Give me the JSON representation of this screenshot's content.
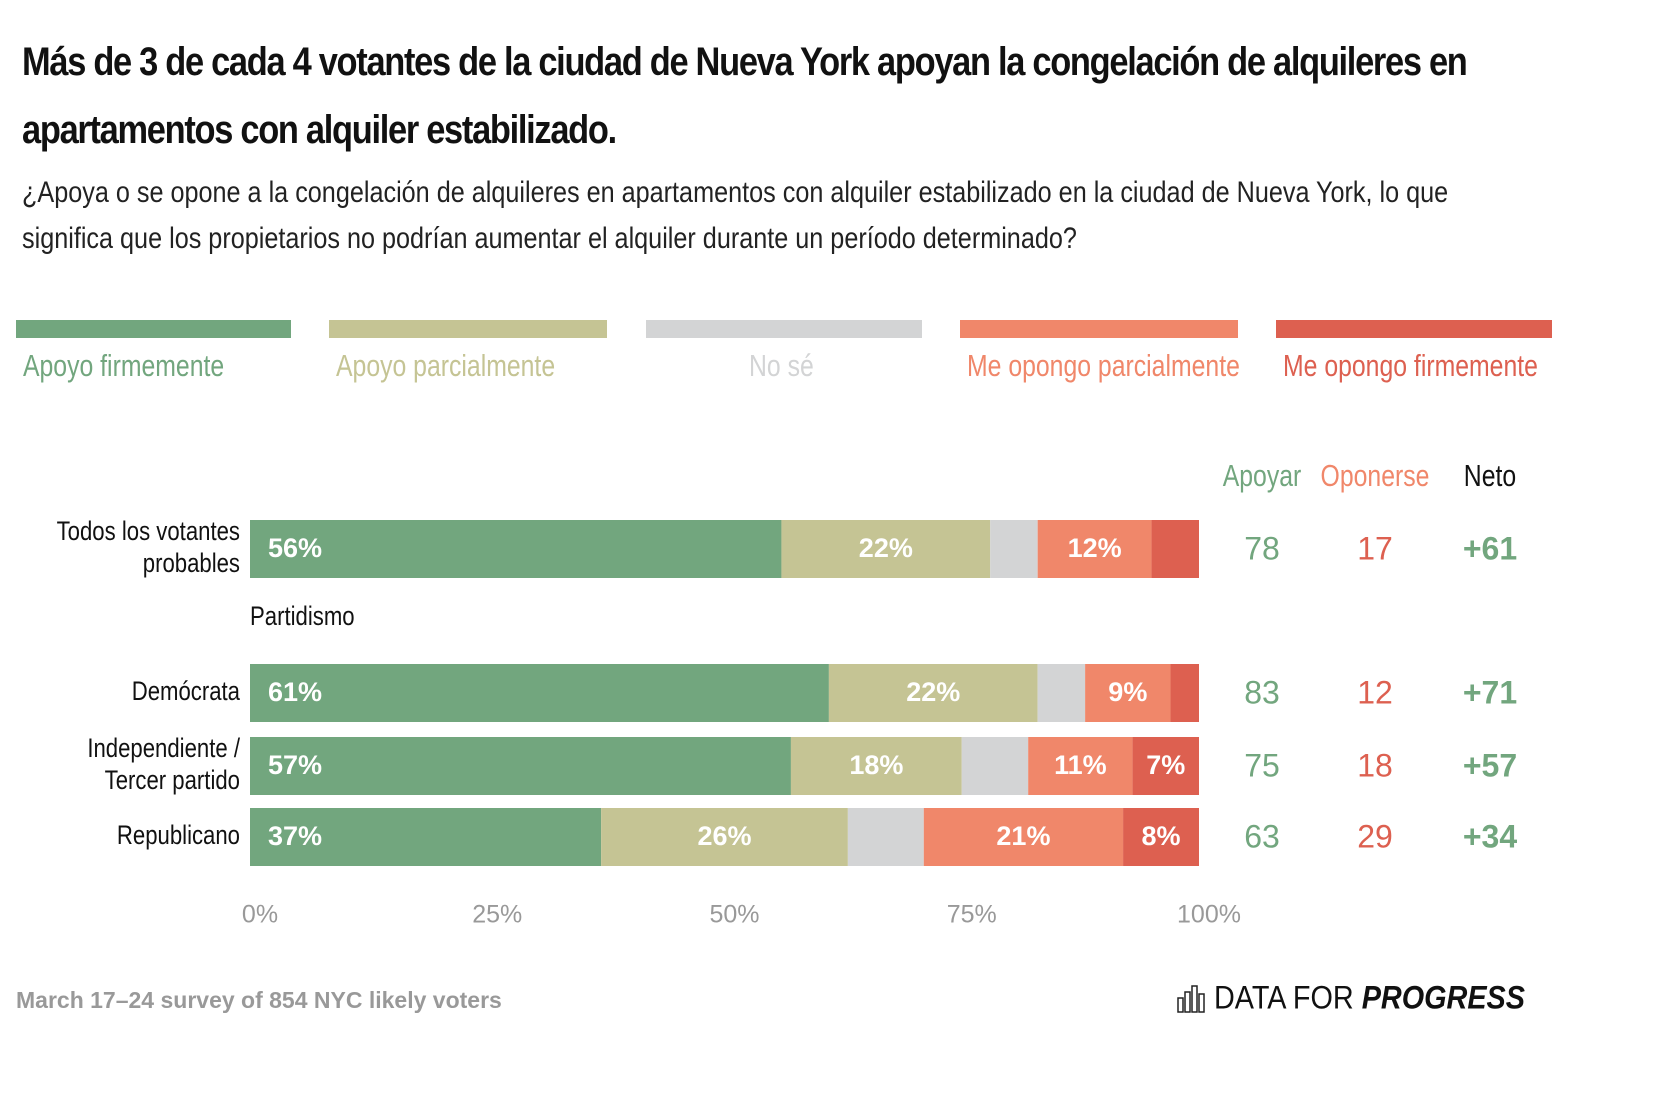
{
  "chart_data": {
    "type": "stacked-bar-horizontal",
    "title": "Más de 3 de cada 4 votantes de la ciudad de Nueva York apoyan la congelación de alquileres en apartamentos con alquiler estabilizado.",
    "subtitle": "¿Apoya o se opone a la congelación de alquileres en apartamentos con alquiler estabilizado en la ciudad de Nueva York, lo que significa que los propietarios no podrían aumentar el alquiler durante un período determinado?",
    "categories": [
      "Todos los votantes probables",
      "Demócrata",
      "Independiente / Tercer partido",
      "Republicano"
    ],
    "group_label": "Partidismo",
    "series": [
      {
        "name": "Apoyo firmemente",
        "color": "#72a67e",
        "values": [
          56,
          61,
          57,
          37
        ],
        "value_labels": [
          "56%",
          "61%",
          "57%",
          "37%"
        ]
      },
      {
        "name": "Apoyo parcialmente",
        "color": "#c5c494",
        "values": [
          22,
          22,
          18,
          26
        ],
        "value_labels": [
          "22%",
          "22%",
          "18%",
          "26%"
        ]
      },
      {
        "name": "No sé",
        "color": "#d3d4d5",
        "values": [
          5,
          5,
          7,
          8
        ],
        "value_labels": [
          null,
          null,
          null,
          null
        ]
      },
      {
        "name": "Me opongo parcialmente",
        "color": "#f0876a",
        "values": [
          12,
          9,
          11,
          21
        ],
        "value_labels": [
          "12%",
          "9%",
          "11%",
          "21%"
        ]
      },
      {
        "name": "Me opongo firmemente",
        "color": "#dd6050",
        "values": [
          5,
          3,
          7,
          8
        ],
        "value_labels": [
          null,
          null,
          "7%",
          "8%"
        ]
      }
    ],
    "columns": [
      {
        "name": "Apoyar",
        "color": "#72a67e",
        "values": [
          78,
          83,
          75,
          63
        ]
      },
      {
        "name": "Oponerse",
        "color": "#dd6050",
        "values": [
          17,
          12,
          18,
          29
        ]
      },
      {
        "name": "Neto",
        "color": "#72a67e",
        "values": [
          61,
          71,
          57,
          34
        ],
        "value_labels": [
          "+61",
          "+71",
          "+57",
          "+34"
        ]
      }
    ],
    "xlim": [
      0,
      100
    ],
    "xticks": [
      {
        "value": 0,
        "label": "0%"
      },
      {
        "value": 25,
        "label": "25%"
      },
      {
        "value": 50,
        "label": "50%"
      },
      {
        "value": 75,
        "label": "75%"
      },
      {
        "value": 100,
        "label": "100%"
      }
    ],
    "source": "March 17–24 survey of 854 NYC likely voters",
    "brand": [
      "DATA FOR",
      "PROGRESS"
    ]
  }
}
